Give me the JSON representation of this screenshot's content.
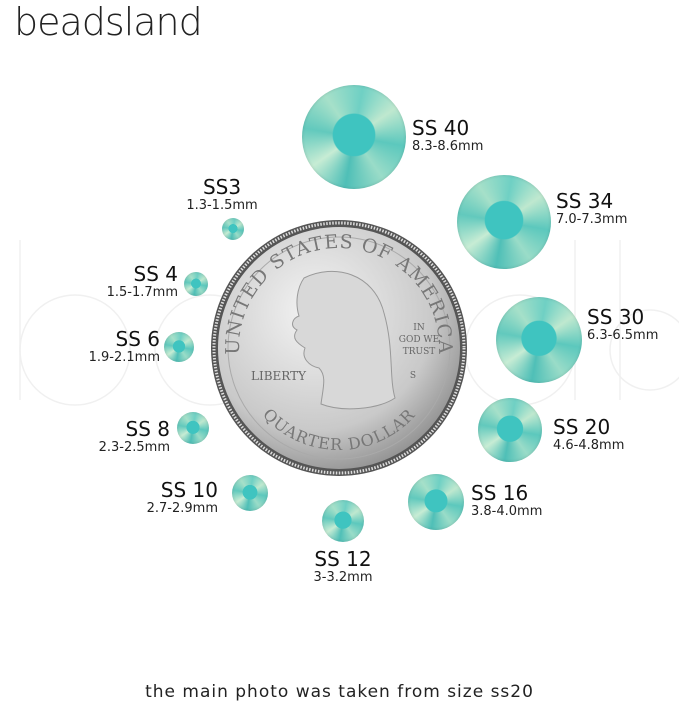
{
  "brand": {
    "logo_text": "beadsland"
  },
  "coin": {
    "top_text": "UNITED STATES OF AMERICA",
    "bottom_text": "QUARTER DOLLAR",
    "liberty": "LIBERTY",
    "motto_1": "IN",
    "motto_2": "GOD WE",
    "motto_3": "TRUST",
    "mint_mark": "S"
  },
  "stone_color": "#6fd0c4",
  "sizes": [
    {
      "label": "SS 40",
      "mm": "8.3-8.6mm"
    },
    {
      "label": "SS 34",
      "mm": "7.0-7.3mm"
    },
    {
      "label": "SS 30",
      "mm": "6.3-6.5mm"
    },
    {
      "label": "SS 20",
      "mm": "4.6-4.8mm"
    },
    {
      "label": "SS 16",
      "mm": "3.8-4.0mm"
    },
    {
      "label": "SS 12",
      "mm": "3-3.2mm"
    },
    {
      "label": "SS 10",
      "mm": "2.7-2.9mm"
    },
    {
      "label": "SS 8",
      "mm": "2.3-2.5mm"
    },
    {
      "label": "SS 6",
      "mm": "1.9-2.1mm"
    },
    {
      "label": "SS 4",
      "mm": "1.5-1.7mm"
    },
    {
      "label": "SS3",
      "mm": "1.3-1.5mm"
    }
  ],
  "caption": "the main photo was taken from size ss20"
}
